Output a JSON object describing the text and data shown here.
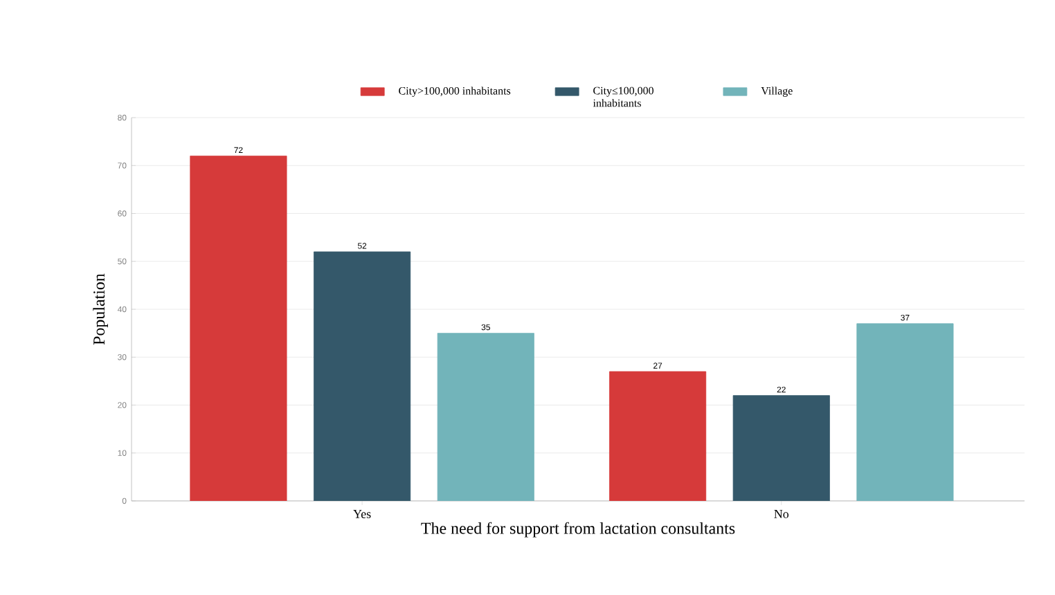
{
  "chart_data": {
    "type": "bar",
    "xlabel": "The need for support from lactation consultants",
    "ylabel": "Population",
    "categories": [
      "Yes",
      "No"
    ],
    "series": [
      {
        "name": "City>100,000 inhabitants",
        "color": "#d63a3a",
        "values": [
          72,
          27
        ]
      },
      {
        "name": "City≤100,000 inhabitants",
        "color": "#34586a",
        "values": [
          52,
          22
        ]
      },
      {
        "name": "Village",
        "color": "#72b4ba",
        "values": [
          35,
          37
        ]
      }
    ],
    "ylim": [
      0,
      80
    ],
    "yticks": [
      0,
      10,
      20,
      30,
      40,
      50,
      60,
      70,
      80
    ],
    "grid": "y",
    "legend": "top",
    "data_labels": true
  }
}
